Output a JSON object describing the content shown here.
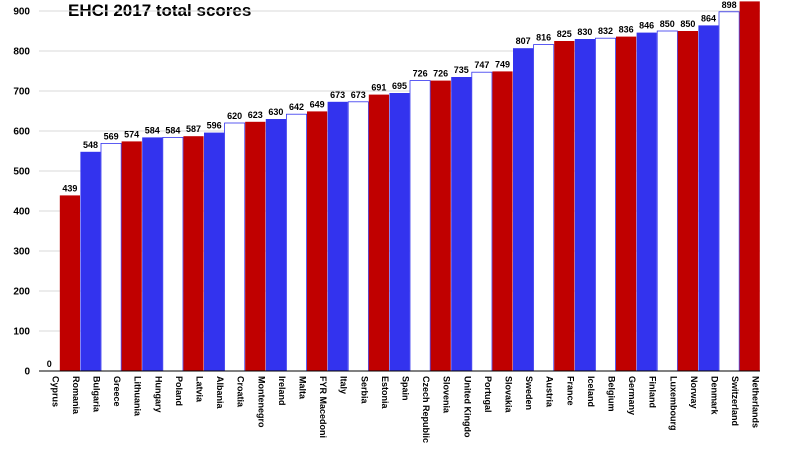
{
  "chart_data": {
    "type": "bar",
    "title": "EHCI 2017 total scores",
    "xlabel": "",
    "ylabel": "",
    "ylim": [
      0,
      920
    ],
    "yticks": [
      0,
      100,
      200,
      300,
      400,
      500,
      600,
      700,
      800,
      900
    ],
    "grid": true,
    "legend": "none",
    "categories": [
      "Cyprus",
      "Romania",
      "Bulgaria",
      "Greece",
      "Lithuania",
      "Hungary",
      "Poland",
      "Latvia",
      "Albania",
      "Croatia",
      "Montenegro",
      "Ireland",
      "Malta",
      "FYR Macedoni",
      "Italy",
      "Serbia",
      "Estonia",
      "Spain",
      "Czech Republic",
      "Slovenia",
      "United Kingdo",
      "Portugal",
      "Slovakia",
      "Sweden",
      "Austria",
      "France",
      "Iceland",
      "Belgium",
      "Germany",
      "Finland",
      "Luxembourg",
      "Norway",
      "Denmark",
      "Switzerland",
      "Netherlands"
    ],
    "values": [
      0,
      439,
      548,
      569,
      574,
      584,
      584,
      587,
      596,
      620,
      623,
      630,
      642,
      649,
      673,
      673,
      691,
      695,
      726,
      726,
      735,
      747,
      749,
      807,
      816,
      825,
      830,
      832,
      836,
      846,
      850,
      850,
      864,
      898,
      924
    ],
    "value_labels": [
      "0",
      "439",
      "548",
      "569",
      "574",
      "584",
      "584",
      "587",
      "596",
      "620",
      "623",
      "630",
      "642",
      "649",
      "673",
      "673",
      "691",
      "695",
      "726",
      "726",
      "735",
      "747",
      "749",
      "807",
      "816",
      "825",
      "830",
      "832",
      "836",
      "846",
      "850",
      "850",
      "864",
      "898",
      ""
    ],
    "colors": {
      "red": "#c00000",
      "blue": "#3333ee",
      "white": "#ffffff",
      "outline": "#3333ee"
    },
    "bar_colors": [
      "white",
      "red",
      "blue",
      "white",
      "red",
      "blue",
      "white",
      "red",
      "blue",
      "white",
      "red",
      "blue",
      "white",
      "red",
      "blue",
      "white",
      "red",
      "blue",
      "white",
      "red",
      "blue",
      "white",
      "red",
      "blue",
      "white",
      "red",
      "blue",
      "white",
      "red",
      "blue",
      "white",
      "red",
      "blue",
      "white",
      "red"
    ]
  }
}
